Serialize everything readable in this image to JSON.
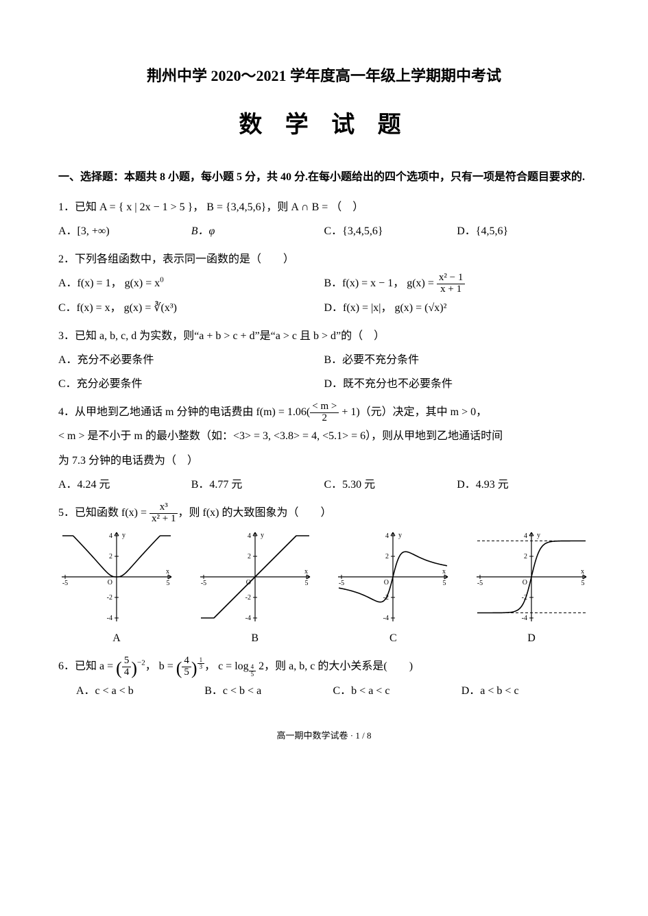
{
  "title_line1": "荆州中学 2020～2021 学年度高一年级上学期期中考试",
  "title_line2": "数 学 试 题",
  "section1_instr": "一、选择题：本题共 8 小题，每小题 5 分，共 40 分.在每小题给出的四个选项中，只有一项是符合题目要求的.",
  "q1": {
    "stem_pre": "1．已知 A = { x | 2x − 1 > 5 }， B = {3,4,5,6}，则 A ∩ B = （　）",
    "optA": "A．[3, +∞)",
    "optB": "B．φ",
    "optC": "C．{3,4,5,6}",
    "optD": "D．{4,5,6}"
  },
  "q2": {
    "stem": "2．下列各组函数中，表示同一函数的是（　　）",
    "optA_pre": "A．f(x) = 1， g(x) = x",
    "optA_sup": "0",
    "optB_pre": "B．f(x) = x − 1， g(x) = ",
    "optB_frac_num": "x² − 1",
    "optB_frac_den": "x + 1",
    "optC": "C．f(x) = x， g(x) = ∛(x³)",
    "optD": "D．f(x) = |x|， g(x) = (√x)²"
  },
  "q3": {
    "stem": "3．已知 a, b, c, d 为实数，则“a + b > c + d”是“a > c 且 b > d”的（　）",
    "optA": "A．充分不必要条件",
    "optB": "B．必要不充分条件",
    "optC": "C．充分必要条件",
    "optD": "D．既不充分也不必要条件"
  },
  "q4": {
    "stem_pre": "4．从甲地到乙地通话 m 分钟的电话费由 f(m) = 1.06(",
    "stem_frac_num": "< m >",
    "stem_frac_den": "2",
    "stem_post": " + 1)（元）决定，其中 m > 0，",
    "line2": "< m > 是不小于 m 的最小整数（如：<3> = 3, <3.8> = 4, <5.1> = 6），则从甲地到乙地通话时间",
    "line3": "为 7.3 分钟的电话费为（　）",
    "optA": "A．4.24 元",
    "optB": "B．4.77 元",
    "optC": "C．5.30 元",
    "optD": "D．4.93 元"
  },
  "q5": {
    "stem_pre": "5．已知函数 f(x) = ",
    "frac_num": "x³",
    "frac_den": "x² + 1",
    "stem_post": "，则 f(x) 的大致图象为（　　）",
    "labelA": "A",
    "labelB": "B",
    "labelC": "C",
    "labelD": "D",
    "graph": {
      "width": 170,
      "height": 140,
      "stroke": "#000000",
      "stroke_width": 1.6,
      "axis_color": "#000000",
      "x_min": -5,
      "x_max": 5,
      "y_min": -4,
      "y_max": 4,
      "bg": "#ffffff",
      "x_ticks": [
        -5,
        5
      ],
      "y_ticks": [
        -4,
        -2,
        2,
        4
      ],
      "tick_font": 10
    }
  },
  "q6": {
    "stem_pre": "6．已知 a = ",
    "a_frac_num": "5",
    "a_frac_den": "4",
    "a_exp": "−2",
    "mid1": "， b = ",
    "b_frac_num": "4",
    "b_frac_den": "5",
    "b_exp_num": "1",
    "b_exp_den": "3",
    "mid2": "， c = log",
    "c_base_num": "4",
    "c_base_den": "5",
    "mid3": " 2，则 a, b, c 的大小关系是(　　)",
    "optA": "A．c < a < b",
    "optB": "B．c < b < a",
    "optC": "C．b < a < c",
    "optD": "D．a < b < c"
  },
  "footer": "高一期中数学试卷 · 1 / 8"
}
